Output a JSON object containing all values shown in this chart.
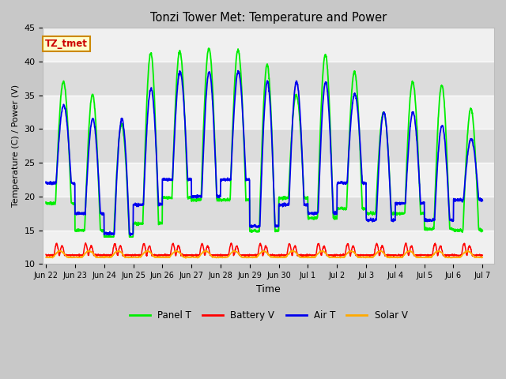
{
  "title": "Tonzi Tower Met: Temperature and Power",
  "xlabel": "Time",
  "ylabel": "Temperature (C) / Power (V)",
  "ylim": [
    10,
    45
  ],
  "bg_color": "#c8c8c8",
  "plot_bg_light": "#f0f0f0",
  "plot_bg_dark": "#dcdcdc",
  "legend_labels": [
    "Panel T",
    "Battery V",
    "Air T",
    "Solar V"
  ],
  "legend_colors": [
    "#00ee00",
    "#ff0000",
    "#0000ee",
    "#ffaa00"
  ],
  "tz_label": "TZ_tmet",
  "tz_bg": "#ffffcc",
  "tz_border": "#cc8800",
  "tz_text": "#cc0000",
  "x_ticks": [
    "Jun 22",
    "Jun 23",
    "Jun 24",
    "Jun 25",
    "Jun 26",
    "Jun 27",
    "Jun 28",
    "Jun 29",
    "Jun 30",
    "Jul 1",
    "Jul 2",
    "Jul 3",
    "Jul 4",
    "Jul 5",
    "Jul 6",
    "Jul 7"
  ],
  "grid_color": "#ffffff",
  "y_ticks": [
    10,
    15,
    20,
    25,
    30,
    35,
    40,
    45
  ],
  "panel_day_peaks": [
    37,
    35.1,
    30.7,
    41.3,
    41.5,
    42,
    41.7,
    39.5,
    35,
    41.1,
    38.5,
    32.5,
    37,
    36.5,
    33
  ],
  "panel_day_mins": [
    19.0,
    15,
    14,
    16,
    19.8,
    19.5,
    19.5,
    14.9,
    19.8,
    16.8,
    18.2,
    17.5,
    17.5,
    15.2,
    15
  ],
  "air_day_peaks": [
    33.5,
    31.5,
    31.5,
    36,
    38.5,
    38.5,
    38.5,
    37,
    37,
    37,
    35.2,
    32.5,
    32.5,
    30.5,
    28.5
  ],
  "air_day_mins": [
    22,
    17.5,
    14.5,
    18.8,
    22.5,
    20,
    22.5,
    15.6,
    18.8,
    17.5,
    22,
    16.5,
    19,
    16.5,
    19.5
  ],
  "bat_base": 11.3,
  "bat_peak": 13.0,
  "solar_base": 11.0,
  "solar_peak": 11.9
}
